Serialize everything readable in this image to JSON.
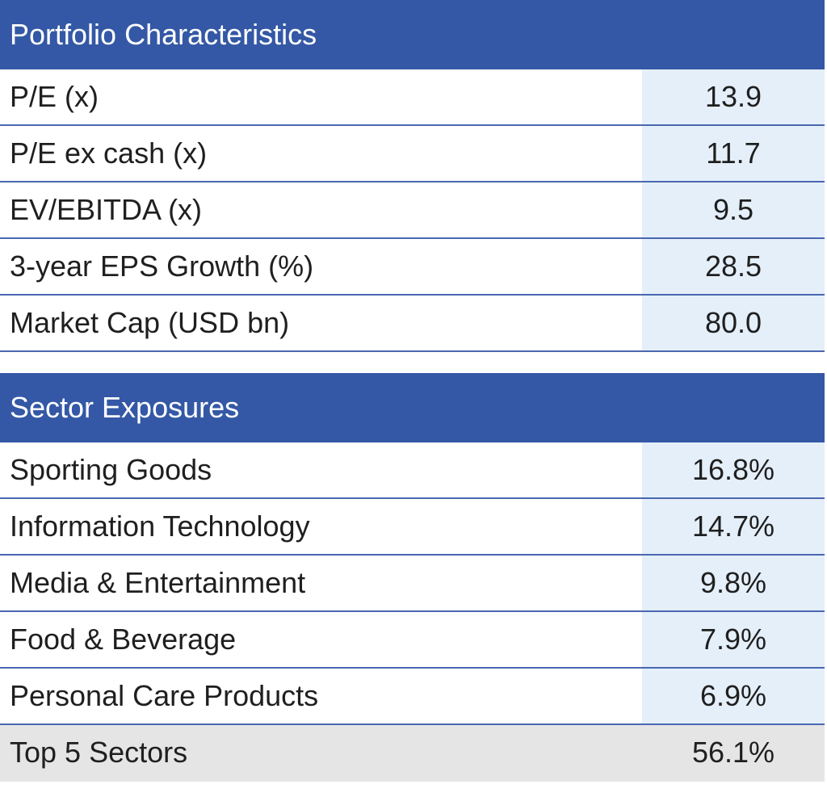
{
  "portfolio": {
    "title": "Portfolio Characteristics",
    "rows": [
      {
        "label": "P/E (x)",
        "value": "13.9"
      },
      {
        "label": "P/E ex cash (x)",
        "value": "11.7"
      },
      {
        "label": "EV/EBITDA (x)",
        "value": "9.5"
      },
      {
        "label": "3-year EPS Growth (%)",
        "value": "28.5"
      },
      {
        "label": "Market Cap (USD bn)",
        "value": "80.0"
      }
    ]
  },
  "sectors": {
    "title": "Sector Exposures",
    "rows": [
      {
        "label": "Sporting Goods",
        "value": "16.8%"
      },
      {
        "label": "Information Technology",
        "value": "14.7%"
      },
      {
        "label": "Media & Entertainment",
        "value": "9.8%"
      },
      {
        "label": "Food & Beverage",
        "value": "7.9%"
      },
      {
        "label": "Personal Care Products",
        "value": "6.9%"
      }
    ],
    "total": {
      "label": "Top 5 Sectors",
      "value": "56.1%"
    }
  },
  "colors": {
    "header_bg": "#3458a5",
    "value_bg": "#e4eff9",
    "total_bg": "#e5e5e5",
    "divider": "#4a67b0"
  }
}
